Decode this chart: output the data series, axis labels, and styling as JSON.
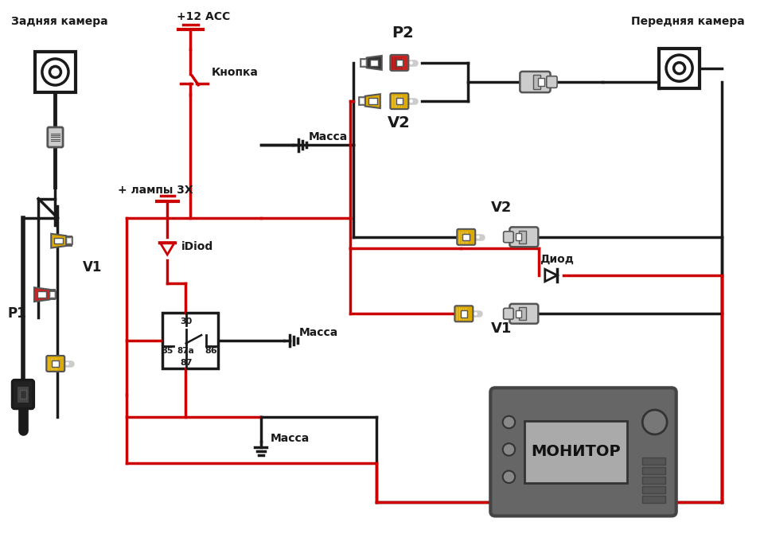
{
  "bg_color": "#ffffff",
  "RED": "#cc0000",
  "BLACK": "#1a1a1a",
  "YELLOW": "#ddaa00",
  "GRAY": "#999999",
  "DGRAY": "#555555",
  "LGRAY": "#cccccc",
  "labels": {
    "rear_camera": "Задняя камера",
    "front_camera": "Передняя камера",
    "plus12acc": "+12 ACC",
    "knopka": "Кнопка",
    "lampy": "+ лампы 3Х",
    "idiod": "iDiod",
    "massa1": "Масса",
    "massa2": "Масса",
    "massa3": "Масса",
    "p1": "P1",
    "p2": "P2",
    "v1_left": "V1",
    "v2_top": "V2",
    "v2_right": "V2",
    "v1_right": "V1",
    "diod": "Диод",
    "monitor": "МОНИТОР",
    "r30": "30",
    "r85": "85",
    "r87a": "87a",
    "r86": "86",
    "r87": "87"
  },
  "lw": 2.5
}
